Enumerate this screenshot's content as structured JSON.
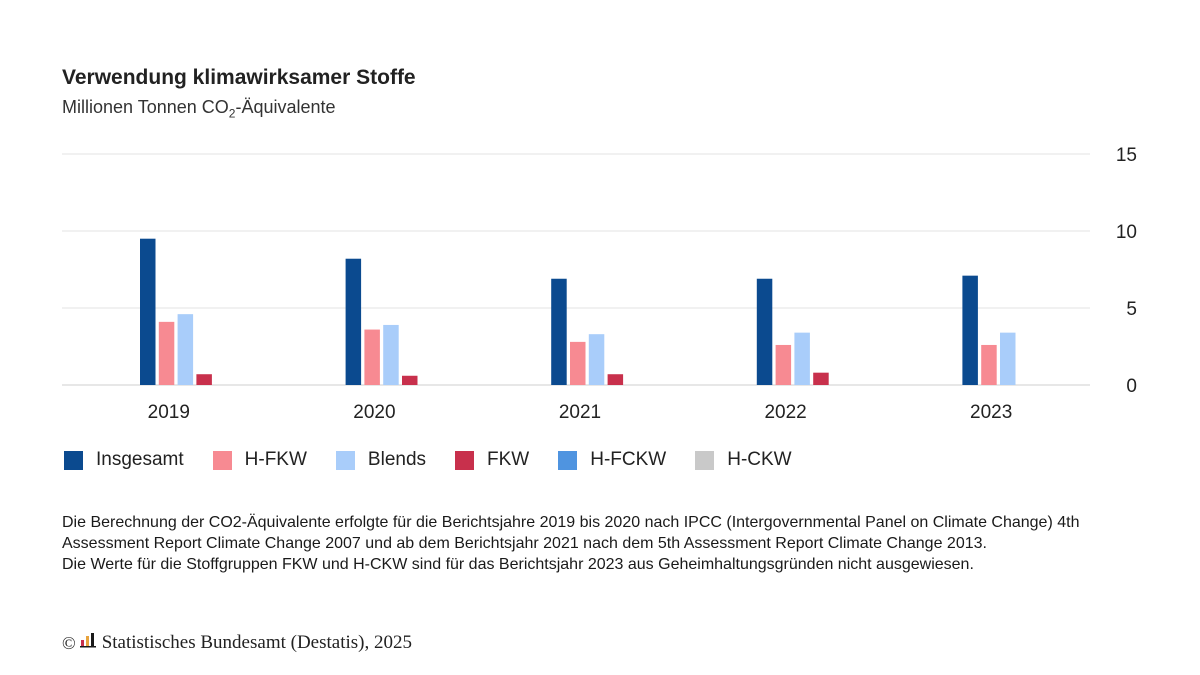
{
  "title": "Verwendung klimawirksamer Stoffe",
  "subtitle_main": "Millionen Tonnen CO",
  "subtitle_sub": "2",
  "subtitle_rest": "-Äquivalente",
  "chart_data": {
    "type": "bar",
    "categories": [
      "2019",
      "2020",
      "2021",
      "2022",
      "2023"
    ],
    "ylim": [
      0,
      15
    ],
    "yticks": [
      0,
      5,
      10,
      15
    ],
    "grid": true,
    "legend_position": "bottom",
    "series": [
      {
        "name": "Insgesamt",
        "color": "#0b4a8f",
        "values": [
          9.5,
          8.2,
          6.9,
          6.9,
          7.1
        ]
      },
      {
        "name": "H-FKW",
        "color": "#f78a92",
        "values": [
          4.1,
          3.6,
          2.8,
          2.6,
          2.6
        ]
      },
      {
        "name": "Blends",
        "color": "#a9cdfa",
        "values": [
          4.6,
          3.9,
          3.3,
          3.4,
          3.4
        ]
      },
      {
        "name": "FKW",
        "color": "#c8304c",
        "values": [
          0.7,
          0.6,
          0.7,
          0.8,
          null
        ]
      },
      {
        "name": "H-FCKW",
        "color": "#4f94e0",
        "values": [
          0,
          0,
          0,
          0,
          0
        ]
      },
      {
        "name": "H-CKW",
        "color": "#c9c9c9",
        "values": [
          0,
          0,
          0,
          0,
          null
        ]
      }
    ]
  },
  "notes": [
    "Die Berechnung der CO2-Äquivalente erfolgte für die Berichtsjahre 2019 bis 2020 nach IPCC (Intergovernmental Panel on Climate Change) 4th Assessment Report Climate Change 2007 und ab dem Berichtsjahr 2021 nach dem 5th Assessment Report Climate Change 2013.",
    "Die Werte für die Stoffgruppen FKW und H-CKW sind für das Berichtsjahr 2023 aus Geheimhaltungsgründen nicht ausgewiesen."
  ],
  "credit": {
    "symbol": "©",
    "text": "Statistisches Bundesamt (Destatis), 2025"
  }
}
